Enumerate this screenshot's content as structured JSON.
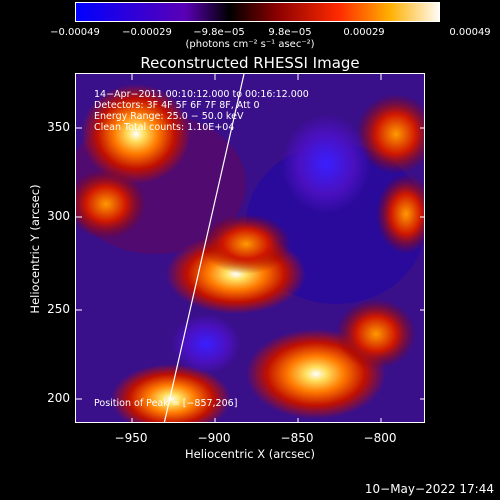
{
  "colorbar": {
    "ticks": [
      "−0.00049",
      "−0.00029",
      "−9.8e−05",
      "9.8e−05",
      "0.00029",
      "0.00049"
    ],
    "units": "(photons cm⁻² s⁻¹ asec⁻²)"
  },
  "title": "Reconstructed RHESSI Image",
  "annotations": {
    "line1": "14−Apr−2011 00:10:12.000 to 00:16:12.000",
    "line2": "Detectors: 3F 4F 5F 6F 7F 8F, Att 0",
    "line3": "Energy Range: 25.0 − 50.0 keV",
    "line4": "Clean     Total counts: 1.10E+04",
    "peak": "Position of Peak = [−857,206]"
  },
  "axes": {
    "xlabel": "Heliocentric X (arcsec)",
    "ylabel": "Heliocentric Y (arcsec)",
    "xticks": [
      "−950",
      "−900",
      "−850",
      "−800"
    ],
    "yticks": [
      "350",
      "300",
      "250",
      "200"
    ]
  },
  "footer": "10−May−2022 17:44"
}
